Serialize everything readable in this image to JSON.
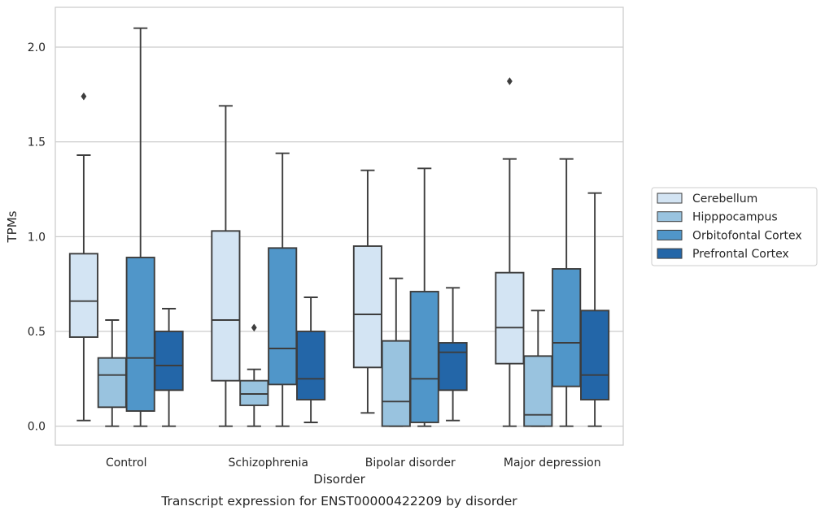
{
  "caption": "Transcript expression for ENST00000422209 by disorder",
  "chart_data": {
    "type": "boxplot",
    "xlabel": "Disorder",
    "ylabel": "TPMs",
    "ylim": [
      -0.1,
      2.21
    ],
    "yticks": [
      0.0,
      0.5,
      1.0,
      1.5,
      2.0
    ],
    "ytick_labels": [
      "0.0",
      "0.5",
      "1.0",
      "1.5",
      "2.0"
    ],
    "grid": "horizontal",
    "legend_position": "right",
    "categories": [
      "Control",
      "Schizophrenia",
      "Bipolar disorder",
      "Major depression"
    ],
    "series": [
      {
        "name": "Cerebellum",
        "color": "#d3e4f3",
        "boxes": [
          {
            "whislo": 0.03,
            "q1": 0.47,
            "med": 0.66,
            "q3": 0.91,
            "whishi": 1.43,
            "fliers": [
              1.74
            ]
          },
          {
            "whislo": 0.0,
            "q1": 0.24,
            "med": 0.56,
            "q3": 1.03,
            "whishi": 1.69,
            "fliers": []
          },
          {
            "whislo": 0.07,
            "q1": 0.31,
            "med": 0.59,
            "q3": 0.95,
            "whishi": 1.35,
            "fliers": []
          },
          {
            "whislo": 0.0,
            "q1": 0.33,
            "med": 0.52,
            "q3": 0.81,
            "whishi": 1.41,
            "fliers": [
              1.82
            ]
          }
        ]
      },
      {
        "name": "Hipppocampus",
        "color": "#99c3df",
        "boxes": [
          {
            "whislo": 0.0,
            "q1": 0.1,
            "med": 0.27,
            "q3": 0.36,
            "whishi": 0.56,
            "fliers": []
          },
          {
            "whislo": 0.0,
            "q1": 0.11,
            "med": 0.17,
            "q3": 0.24,
            "whishi": 0.3,
            "fliers": [
              0.52
            ]
          },
          {
            "whislo": 0.0,
            "q1": 0.0,
            "med": 0.13,
            "q3": 0.45,
            "whishi": 0.78,
            "fliers": []
          },
          {
            "whislo": 0.0,
            "q1": 0.0,
            "med": 0.06,
            "q3": 0.37,
            "whishi": 0.61,
            "fliers": []
          }
        ]
      },
      {
        "name": "Orbitofontal Cortex",
        "color": "#5096c9",
        "boxes": [
          {
            "whislo": 0.0,
            "q1": 0.08,
            "med": 0.36,
            "q3": 0.89,
            "whishi": 2.1,
            "fliers": []
          },
          {
            "whislo": 0.0,
            "q1": 0.22,
            "med": 0.41,
            "q3": 0.94,
            "whishi": 1.44,
            "fliers": []
          },
          {
            "whislo": 0.0,
            "q1": 0.02,
            "med": 0.25,
            "q3": 0.71,
            "whishi": 1.36,
            "fliers": []
          },
          {
            "whislo": 0.0,
            "q1": 0.21,
            "med": 0.44,
            "q3": 0.83,
            "whishi": 1.41,
            "fliers": []
          }
        ]
      },
      {
        "name": "Prefrontal Cortex",
        "color": "#2366a8",
        "boxes": [
          {
            "whislo": 0.0,
            "q1": 0.19,
            "med": 0.32,
            "q3": 0.5,
            "whishi": 0.62,
            "fliers": []
          },
          {
            "whislo": 0.02,
            "q1": 0.14,
            "med": 0.25,
            "q3": 0.5,
            "whishi": 0.68,
            "fliers": []
          },
          {
            "whislo": 0.03,
            "q1": 0.19,
            "med": 0.39,
            "q3": 0.44,
            "whishi": 0.73,
            "fliers": []
          },
          {
            "whislo": 0.0,
            "q1": 0.14,
            "med": 0.27,
            "q3": 0.61,
            "whishi": 1.23,
            "fliers": []
          }
        ]
      }
    ]
  }
}
